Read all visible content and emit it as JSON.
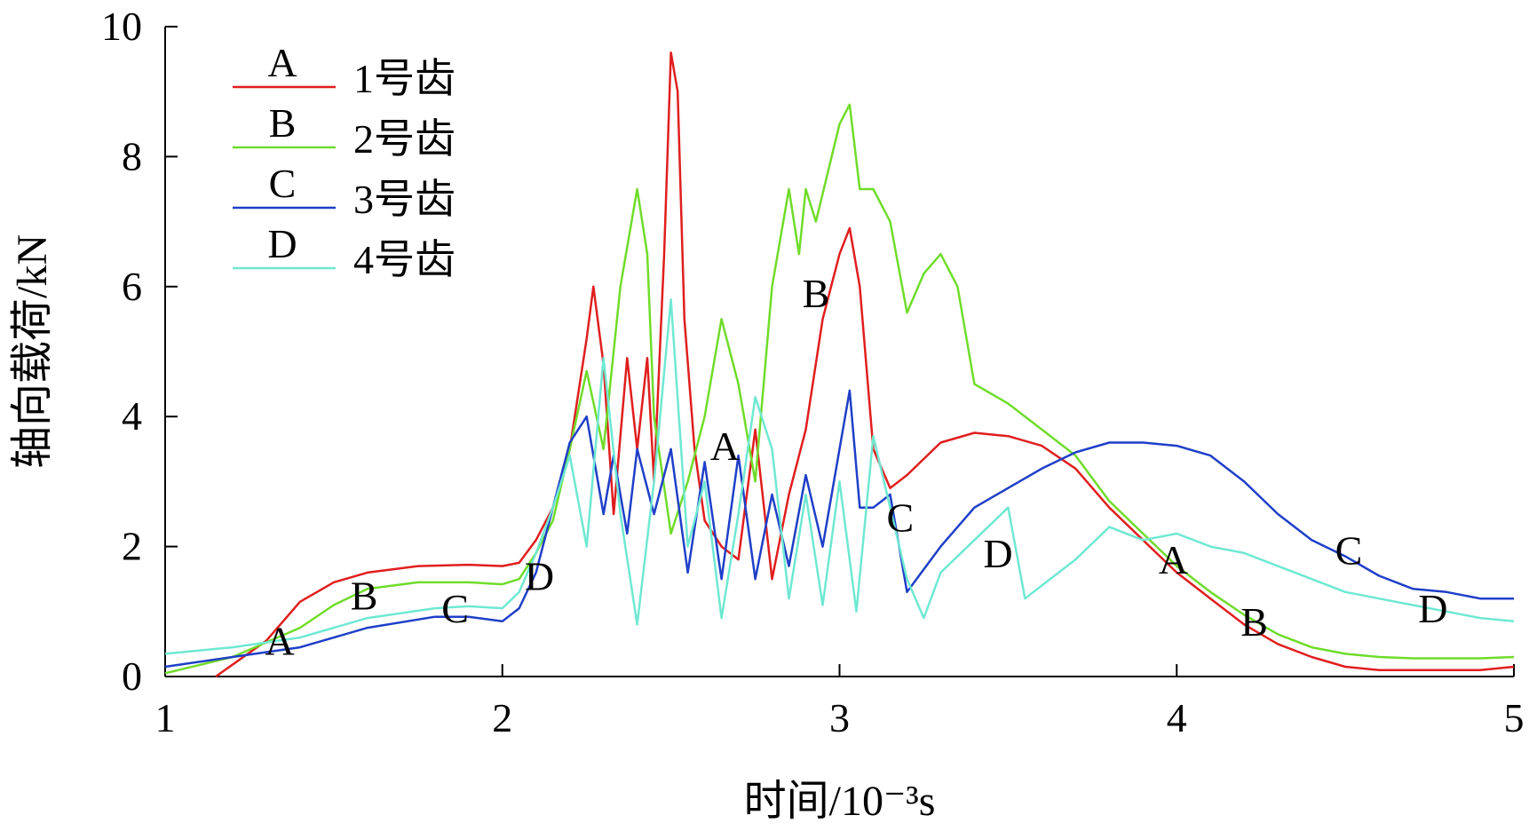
{
  "chart_data": {
    "type": "line",
    "xlabel": "时间/10⁻³s",
    "ylabel": "轴向载荷/kN",
    "xlim": [
      1,
      5
    ],
    "ylim": [
      0,
      10
    ],
    "xticks": [
      "1",
      "2",
      "3",
      "4",
      "5"
    ],
    "yticks": [
      "0",
      "2",
      "4",
      "6",
      "8",
      "10"
    ],
    "grid": false,
    "legend_position": "top-left",
    "series": [
      {
        "name": "1号齿",
        "marker": "A",
        "color": "#e01e1e",
        "x": [
          1.15,
          1.3,
          1.4,
          1.5,
          1.6,
          1.75,
          1.9,
          2.0,
          2.05,
          2.1,
          2.15,
          2.2,
          2.25,
          2.27,
          2.3,
          2.33,
          2.37,
          2.4,
          2.43,
          2.45,
          2.48,
          2.5,
          2.52,
          2.54,
          2.57,
          2.6,
          2.65,
          2.7,
          2.75,
          2.8,
          2.85,
          2.9,
          2.95,
          3.0,
          3.03,
          3.06,
          3.1,
          3.15,
          3.2,
          3.3,
          3.4,
          3.5,
          3.6,
          3.7,
          3.8,
          3.9,
          4.0,
          4.1,
          4.2,
          4.3,
          4.4,
          4.5,
          4.6,
          4.7,
          4.8,
          4.9,
          5.0
        ],
        "y": [
          0.0,
          0.55,
          1.15,
          1.45,
          1.6,
          1.7,
          1.72,
          1.7,
          1.75,
          2.1,
          2.6,
          3.5,
          5.2,
          6.0,
          4.8,
          2.5,
          4.9,
          3.5,
          4.9,
          3.0,
          6.5,
          9.6,
          9.0,
          5.5,
          3.5,
          2.4,
          2.0,
          1.8,
          3.8,
          1.5,
          2.8,
          3.8,
          5.5,
          6.5,
          6.9,
          6.0,
          3.5,
          2.9,
          3.1,
          3.6,
          3.75,
          3.7,
          3.55,
          3.2,
          2.6,
          2.1,
          1.6,
          1.2,
          0.8,
          0.5,
          0.3,
          0.15,
          0.1,
          0.1,
          0.1,
          0.1,
          0.15
        ]
      },
      {
        "name": "2号齿",
        "marker": "B",
        "color": "#6fdc2a",
        "x": [
          1.0,
          1.2,
          1.4,
          1.5,
          1.6,
          1.75,
          1.9,
          2.0,
          2.05,
          2.1,
          2.15,
          2.2,
          2.25,
          2.3,
          2.35,
          2.4,
          2.43,
          2.45,
          2.5,
          2.55,
          2.6,
          2.65,
          2.7,
          2.75,
          2.8,
          2.85,
          2.88,
          2.9,
          2.93,
          3.0,
          3.03,
          3.06,
          3.1,
          3.15,
          3.2,
          3.25,
          3.3,
          3.35,
          3.4,
          3.5,
          3.6,
          3.7,
          3.8,
          3.9,
          4.0,
          4.1,
          4.2,
          4.3,
          4.4,
          4.5,
          4.6,
          4.7,
          4.8,
          4.9,
          5.0
        ],
        "y": [
          0.05,
          0.3,
          0.75,
          1.1,
          1.35,
          1.45,
          1.45,
          1.42,
          1.5,
          1.9,
          2.4,
          3.5,
          4.7,
          3.5,
          6.0,
          7.5,
          6.5,
          4.0,
          2.2,
          3.0,
          4.0,
          5.5,
          4.5,
          3.0,
          6.0,
          7.5,
          6.5,
          7.5,
          7.0,
          8.5,
          8.8,
          7.5,
          7.5,
          7.0,
          5.6,
          6.2,
          6.5,
          6.0,
          4.5,
          4.2,
          3.8,
          3.4,
          2.7,
          2.2,
          1.7,
          1.3,
          0.95,
          0.65,
          0.45,
          0.35,
          0.3,
          0.28,
          0.28,
          0.28,
          0.3
        ]
      },
      {
        "name": "3号齿",
        "marker": "C",
        "color": "#1f3fc8",
        "x": [
          1.0,
          1.2,
          1.4,
          1.6,
          1.8,
          1.9,
          2.0,
          2.05,
          2.1,
          2.15,
          2.2,
          2.25,
          2.3,
          2.33,
          2.37,
          2.4,
          2.45,
          2.5,
          2.55,
          2.6,
          2.65,
          2.7,
          2.75,
          2.8,
          2.85,
          2.9,
          2.95,
          3.0,
          3.03,
          3.06,
          3.1,
          3.15,
          3.2,
          3.3,
          3.4,
          3.5,
          3.6,
          3.7,
          3.8,
          3.9,
          4.0,
          4.1,
          4.2,
          4.3,
          4.4,
          4.5,
          4.6,
          4.7,
          4.8,
          4.9,
          5.0
        ],
        "y": [
          0.15,
          0.3,
          0.45,
          0.75,
          0.92,
          0.92,
          0.85,
          1.05,
          1.6,
          2.6,
          3.6,
          4.0,
          2.5,
          3.4,
          2.2,
          3.5,
          2.5,
          3.5,
          1.6,
          3.3,
          1.5,
          3.4,
          1.5,
          2.8,
          1.7,
          3.1,
          2.0,
          3.5,
          4.4,
          2.6,
          2.6,
          2.8,
          1.3,
          2.0,
          2.6,
          2.9,
          3.2,
          3.45,
          3.6,
          3.6,
          3.55,
          3.4,
          3.0,
          2.5,
          2.1,
          1.85,
          1.55,
          1.35,
          1.3,
          1.2,
          1.2
        ]
      },
      {
        "name": "4号齿",
        "marker": "D",
        "color": "#6fe8d2",
        "x": [
          1.0,
          1.2,
          1.4,
          1.6,
          1.8,
          1.9,
          2.0,
          2.05,
          2.1,
          2.15,
          2.2,
          2.25,
          2.3,
          2.35,
          2.4,
          2.45,
          2.5,
          2.55,
          2.6,
          2.65,
          2.7,
          2.75,
          2.8,
          2.85,
          2.9,
          2.95,
          3.0,
          3.05,
          3.1,
          3.15,
          3.2,
          3.25,
          3.3,
          3.4,
          3.5,
          3.55,
          3.6,
          3.7,
          3.8,
          3.9,
          4.0,
          4.1,
          4.2,
          4.3,
          4.4,
          4.5,
          4.6,
          4.7,
          4.8,
          4.9,
          5.0
        ],
        "y": [
          0.35,
          0.45,
          0.6,
          0.9,
          1.05,
          1.08,
          1.05,
          1.3,
          1.9,
          2.6,
          3.4,
          2.0,
          4.9,
          2.5,
          0.8,
          3.0,
          5.8,
          2.0,
          3.0,
          0.9,
          2.5,
          4.3,
          3.5,
          1.2,
          2.8,
          1.1,
          3.0,
          1.0,
          3.7,
          2.6,
          1.5,
          0.9,
          1.6,
          2.1,
          2.6,
          1.2,
          1.4,
          1.8,
          2.3,
          2.1,
          2.2,
          2.0,
          1.9,
          1.7,
          1.5,
          1.3,
          1.2,
          1.1,
          1.0,
          0.9,
          0.85
        ]
      }
    ],
    "annotations": [
      {
        "text": "A",
        "x": 1.34,
        "y": 0.55
      },
      {
        "text": "B",
        "x": 1.59,
        "y": 1.25
      },
      {
        "text": "C",
        "x": 1.86,
        "y": 1.05
      },
      {
        "text": "D",
        "x": 2.11,
        "y": 1.55
      },
      {
        "text": "A",
        "x": 2.66,
        "y": 3.55
      },
      {
        "text": "B",
        "x": 2.93,
        "y": 5.9
      },
      {
        "text": "C",
        "x": 3.18,
        "y": 2.45
      },
      {
        "text": "D",
        "x": 3.47,
        "y": 1.9
      },
      {
        "text": "A",
        "x": 3.99,
        "y": 1.8
      },
      {
        "text": "B",
        "x": 4.23,
        "y": 0.85
      },
      {
        "text": "C",
        "x": 4.51,
        "y": 1.95
      },
      {
        "text": "D",
        "x": 4.76,
        "y": 1.05
      }
    ]
  }
}
